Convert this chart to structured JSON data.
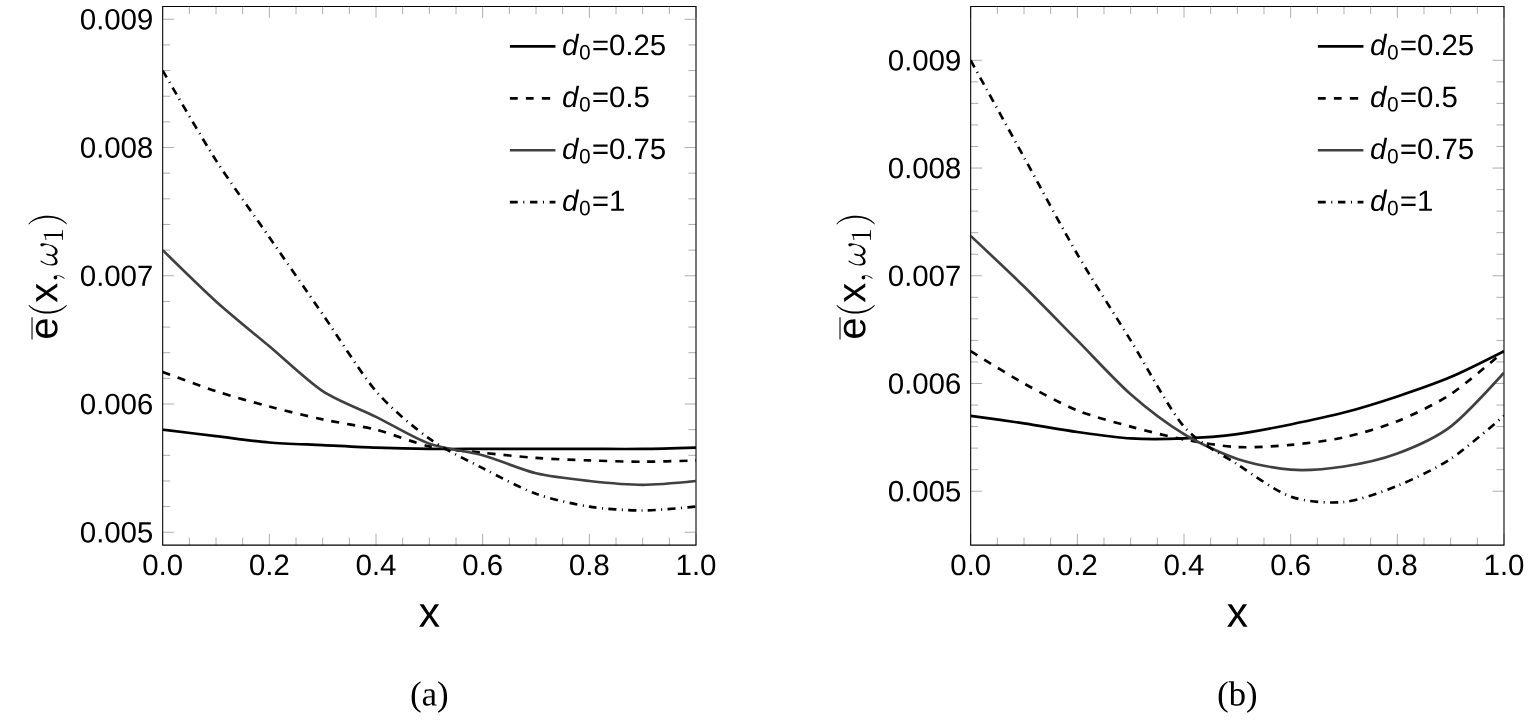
{
  "chart_data": [
    {
      "type": "line",
      "xlabel": "x",
      "ylabel": "\\overline{\\mathrm{e}}(\\mathrm{x},\\omega_1)",
      "annotations": [
        "(a)"
      ],
      "legend": "top right",
      "grid": false,
      "x": [
        0,
        0.1,
        0.2,
        0.3,
        0.4,
        0.5,
        0.6,
        0.7,
        0.8,
        0.9,
        1.0
      ],
      "xlim": [
        0,
        1
      ],
      "ylim": [
        0.0049,
        0.0091
      ],
      "xticks": [
        {
          "value": 0,
          "label": "0.0"
        },
        {
          "value": 0.2,
          "label": "0.2"
        },
        {
          "value": 0.4,
          "label": "0.4"
        },
        {
          "value": 0.6,
          "label": "0.6"
        },
        {
          "value": 0.8,
          "label": "0.8"
        },
        {
          "value": 1,
          "label": "1.0"
        }
      ],
      "yticks": [
        0.005,
        0.006,
        0.007,
        0.008,
        0.009
      ],
      "series": [
        {
          "name": "*d*$_{0}$=0.25",
          "color": "#000000",
          "line_style": "solid",
          "values": [
            0.0058,
            0.00575,
            0.0057,
            0.00568,
            0.00566,
            0.00565,
            0.00565,
            0.00565,
            0.00565,
            0.00565,
            0.00566
          ]
        },
        {
          "name": "*d*$_{0}$=0.5",
          "color": "#000000",
          "line_style": "dashed",
          "values": [
            0.00625,
            0.0061,
            0.00598,
            0.00588,
            0.0058,
            0.00567,
            0.00562,
            0.00558,
            0.00556,
            0.00555,
            0.00556
          ]
        },
        {
          "name": "*d*$_{0}$=0.75",
          "color": "#404040",
          "line_style": "solid",
          "values": [
            0.0072,
            0.0068,
            0.00645,
            0.0061,
            0.0059,
            0.00569,
            0.0056,
            0.00546,
            0.0054,
            0.00537,
            0.0054
          ]
        },
        {
          "name": "*d*$_{0}$=1",
          "color": "#000000",
          "line_style": "dashdot",
          "values": [
            0.0086,
            0.0079,
            0.0073,
            0.0067,
            0.0061,
            0.00573,
            0.0055,
            0.0053,
            0.0052,
            0.00517,
            0.0052
          ]
        }
      ]
    },
    {
      "type": "line",
      "xlabel": "x",
      "ylabel": "\\overline{\\mathrm{e}}(\\mathrm{x},\\omega_1)",
      "annotations": [
        "(b)"
      ],
      "legend": "top right",
      "grid": false,
      "x": [
        0,
        0.1,
        0.2,
        0.3,
        0.4,
        0.5,
        0.6,
        0.7,
        0.8,
        0.9,
        1.0
      ],
      "xlim": [
        0,
        1
      ],
      "ylim": [
        0.0045,
        0.0095
      ],
      "xticks": [
        {
          "value": 0,
          "label": "0.0"
        },
        {
          "value": 0.2,
          "label": "0.2"
        },
        {
          "value": 0.4,
          "label": "0.4"
        },
        {
          "value": 0.6,
          "label": "0.6"
        },
        {
          "value": 0.8,
          "label": "0.8"
        },
        {
          "value": 1,
          "label": "1.0"
        }
      ],
      "yticks": [
        0.005,
        0.006,
        0.007,
        0.008,
        0.009
      ],
      "series": [
        {
          "name": "*d*$_{0}$=0.25",
          "color": "#000000",
          "line_style": "solid",
          "values": [
            0.0057,
            0.00563,
            0.00555,
            0.00549,
            0.00549,
            0.00553,
            0.00562,
            0.00573,
            0.00588,
            0.00606,
            0.0063
          ]
        },
        {
          "name": "*d*$_{0}$=0.5",
          "color": "#000000",
          "line_style": "dashed",
          "values": [
            0.0063,
            0.006,
            0.00575,
            0.0056,
            0.00548,
            0.00541,
            0.00543,
            0.0055,
            0.00565,
            0.0059,
            0.0063
          ]
        },
        {
          "name": "*d*$_{0}$=0.75",
          "color": "#404040",
          "line_style": "solid",
          "values": [
            0.00737,
            0.0069,
            0.0064,
            0.0059,
            0.00553,
            0.0053,
            0.0052,
            0.00523,
            0.00535,
            0.0056,
            0.0061
          ]
        },
        {
          "name": "*d*$_{0}$=1",
          "color": "#000000",
          "line_style": "dashdot",
          "values": [
            0.009,
            0.0081,
            0.0072,
            0.0064,
            0.0056,
            0.00525,
            0.00495,
            0.0049,
            0.00505,
            0.0053,
            0.0057
          ]
        }
      ]
    }
  ]
}
